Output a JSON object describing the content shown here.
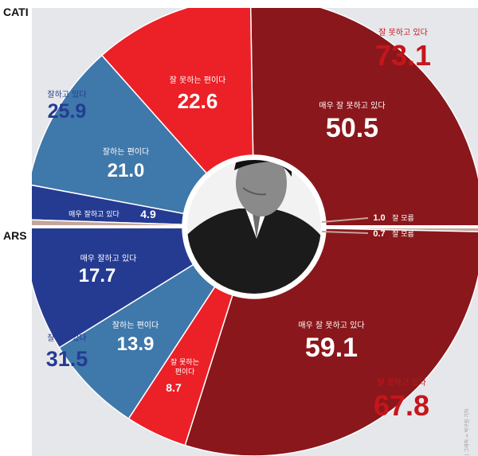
{
  "colors": {
    "background": "#e6e7eb",
    "very_bad": "#8a171b",
    "somewhat_bad": "#ec2027",
    "somewhat_good": "#3f78aa",
    "very_good": "#253b92",
    "no_answer": "#c4a598",
    "total_bad_text": "#c4161c",
    "total_good_text": "#253b92",
    "white": "#ffffff",
    "divider": "#ffffff"
  },
  "labels": {
    "cati": "CATI",
    "ars": "ARS",
    "credit": "한국일보 | 그래픽 = 박구원 기자"
  },
  "chart_data": {
    "type": "pie",
    "subtype": "double half-donut (top: CATI, bottom: ARS)",
    "units": "%",
    "series": [
      {
        "name": "CATI",
        "slices": [
          {
            "label": "매우 잘 못하고 있다",
            "value": 50.5,
            "color": "#8a171b"
          },
          {
            "label": "잘 못하는 편이다",
            "value": 22.6,
            "color": "#ec2027"
          },
          {
            "label": "잘하는 편이다",
            "value": 21.0,
            "color": "#3f78aa"
          },
          {
            "label": "매우 잘하고 있다",
            "value": 4.9,
            "color": "#253b92"
          },
          {
            "label": "잘 모름",
            "value": 1.0,
            "color": "#c4a598"
          }
        ],
        "totals": [
          {
            "label": "잘 못하고 있다",
            "value": 73.1
          },
          {
            "label": "잘하고 있다",
            "value": 25.9
          }
        ]
      },
      {
        "name": "ARS",
        "slices": [
          {
            "label": "잘 모름",
            "value": 0.7,
            "color": "#c4a598"
          },
          {
            "label": "매우 잘 못하고 있다",
            "value": 59.1,
            "color": "#8a171b"
          },
          {
            "label": "잘 못하는 편이다",
            "value": 8.7,
            "color": "#ec2027"
          },
          {
            "label": "잘하는 편이다",
            "value": 13.9,
            "color": "#3f78aa"
          },
          {
            "label": "매우 잘하고 있다",
            "value": 17.7,
            "color": "#253b92"
          }
        ],
        "totals": [
          {
            "label": "잘 못하고 있다",
            "value": 67.8
          },
          {
            "label": "잘하고 있다",
            "value": 31.5
          }
        ]
      }
    ],
    "text": {
      "cati_very_bad_label": "매우 잘 못하고 있다",
      "cati_very_bad_value": "50.5",
      "cati_some_bad_label": "잘 못하는 편이다",
      "cati_some_bad_value": "22.6",
      "cati_some_good_label": "잘하는 편이다",
      "cati_some_good_value": "21.0",
      "cati_very_good_label": "매우 잘하고 있다",
      "cati_very_good_value": "4.9",
      "cati_dk_value": "1.0",
      "dk_label": "잘 모름",
      "cati_total_bad_label": "잘 못하고 있다",
      "cati_total_bad_value": "73.1",
      "cati_total_good_label": "잘하고 있다",
      "cati_total_good_value": "25.9",
      "ars_very_bad_label": "매우 잘 못하고 있다",
      "ars_very_bad_value": "59.1",
      "ars_some_bad_label_1": "잘 못하는",
      "ars_some_bad_label_2": "편이다",
      "ars_some_bad_value": "8.7",
      "ars_some_good_label": "잘하는 편이다",
      "ars_some_good_value": "13.9",
      "ars_very_good_label": "매우 잘하고 있다",
      "ars_very_good_value": "17.7",
      "ars_dk_value": "0.7",
      "ars_total_bad_label": "잘 못하고 있다",
      "ars_total_bad_value": "67.8",
      "ars_total_good_label": "잘하고 있다",
      "ars_total_good_value": "31.5"
    }
  }
}
